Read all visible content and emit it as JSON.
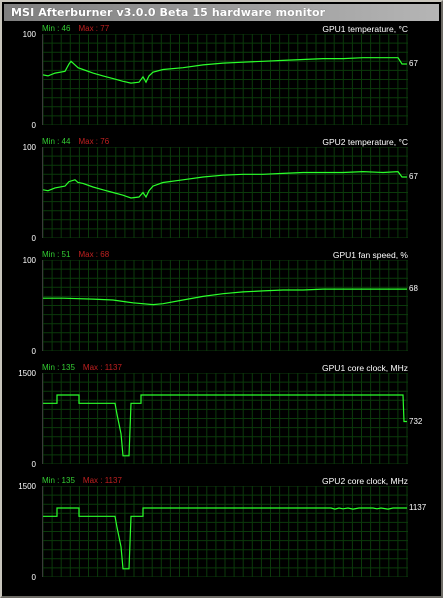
{
  "window": {
    "title": "MSI Afterburner v3.0.0 Beta 15 hardware monitor"
  },
  "colors": {
    "grid": "#0b3a0b",
    "line": "#2bff2b",
    "min": "#33cc33",
    "max": "#c02020"
  },
  "graphs": [
    {
      "title": "GPU1 temperature, °C",
      "min_label": "Min : 46",
      "max_label": "Max : 77",
      "y_top": "100",
      "y_bottom": "0",
      "current": "67",
      "range": [
        0,
        100
      ],
      "series": [
        [
          0,
          55
        ],
        [
          5,
          54
        ],
        [
          12,
          57
        ],
        [
          22,
          59
        ],
        [
          26,
          67
        ],
        [
          28,
          70
        ],
        [
          32,
          66
        ],
        [
          35,
          63
        ],
        [
          40,
          61
        ],
        [
          50,
          57
        ],
        [
          60,
          54
        ],
        [
          70,
          51
        ],
        [
          80,
          48
        ],
        [
          88,
          46
        ],
        [
          96,
          47
        ],
        [
          100,
          53
        ],
        [
          103,
          47
        ],
        [
          106,
          54
        ],
        [
          110,
          58
        ],
        [
          120,
          61
        ],
        [
          140,
          63
        ],
        [
          160,
          66
        ],
        [
          180,
          68
        ],
        [
          200,
          69
        ],
        [
          220,
          70
        ],
        [
          240,
          71
        ],
        [
          260,
          72
        ],
        [
          280,
          73
        ],
        [
          300,
          73
        ],
        [
          320,
          74
        ],
        [
          340,
          74
        ],
        [
          355,
          74
        ],
        [
          359,
          67
        ],
        [
          364,
          67
        ]
      ]
    },
    {
      "title": "GPU2 temperature, °C",
      "min_label": "Min : 44",
      "max_label": "Max : 76",
      "y_top": "100",
      "y_bottom": "0",
      "current": "67",
      "range": [
        0,
        100
      ],
      "series": [
        [
          0,
          53
        ],
        [
          5,
          52
        ],
        [
          12,
          55
        ],
        [
          22,
          57
        ],
        [
          26,
          62
        ],
        [
          32,
          64
        ],
        [
          35,
          61
        ],
        [
          40,
          60
        ],
        [
          50,
          56
        ],
        [
          60,
          53
        ],
        [
          70,
          50
        ],
        [
          80,
          47
        ],
        [
          88,
          44
        ],
        [
          96,
          45
        ],
        [
          100,
          50
        ],
        [
          103,
          45
        ],
        [
          106,
          52
        ],
        [
          110,
          57
        ],
        [
          120,
          61
        ],
        [
          140,
          64
        ],
        [
          160,
          67
        ],
        [
          180,
          69
        ],
        [
          200,
          70
        ],
        [
          220,
          70
        ],
        [
          240,
          71
        ],
        [
          260,
          72
        ],
        [
          280,
          72
        ],
        [
          300,
          72
        ],
        [
          320,
          73
        ],
        [
          340,
          72
        ],
        [
          355,
          73
        ],
        [
          359,
          67
        ],
        [
          364,
          67
        ]
      ]
    },
    {
      "title": "GPU1 fan speed, %",
      "min_label": "Min : 51",
      "max_label": "Max : 68",
      "y_top": "100",
      "y_bottom": "0",
      "current": "68",
      "range": [
        0,
        100
      ],
      "series": [
        [
          0,
          58
        ],
        [
          20,
          58
        ],
        [
          50,
          57
        ],
        [
          70,
          56
        ],
        [
          90,
          53
        ],
        [
          110,
          51
        ],
        [
          120,
          52
        ],
        [
          140,
          56
        ],
        [
          160,
          60
        ],
        [
          180,
          63
        ],
        [
          200,
          65
        ],
        [
          220,
          66
        ],
        [
          240,
          67
        ],
        [
          260,
          67
        ],
        [
          280,
          68
        ],
        [
          300,
          68
        ],
        [
          320,
          68
        ],
        [
          340,
          68
        ],
        [
          364,
          68
        ]
      ]
    },
    {
      "title": "GPU1 core clock, MHz",
      "min_label": "Min : 135",
      "max_label": "Max : 1137",
      "y_top": "1500",
      "y_bottom": "0",
      "current": "732",
      "range": [
        0,
        1500
      ],
      "series": [
        [
          0,
          1000
        ],
        [
          14,
          1000
        ],
        [
          14,
          1137
        ],
        [
          36,
          1137
        ],
        [
          36,
          1000
        ],
        [
          72,
          1000
        ],
        [
          74,
          820
        ],
        [
          78,
          500
        ],
        [
          80,
          135
        ],
        [
          84,
          135
        ],
        [
          86,
          135
        ],
        [
          88,
          1000
        ],
        [
          98,
          1000
        ],
        [
          98,
          1137
        ],
        [
          360,
          1137
        ],
        [
          361,
          700
        ],
        [
          364,
          700
        ]
      ]
    },
    {
      "title": "GPU2 core clock, MHz",
      "min_label": "Min : 135",
      "max_label": "Max : 1137",
      "y_top": "1500",
      "y_bottom": "0",
      "current": "1137",
      "range": [
        0,
        1500
      ],
      "series": [
        [
          0,
          1000
        ],
        [
          14,
          1000
        ],
        [
          14,
          1137
        ],
        [
          36,
          1137
        ],
        [
          36,
          1000
        ],
        [
          72,
          1000
        ],
        [
          74,
          820
        ],
        [
          78,
          500
        ],
        [
          80,
          135
        ],
        [
          84,
          135
        ],
        [
          86,
          135
        ],
        [
          88,
          1000
        ],
        [
          100,
          1000
        ],
        [
          100,
          1137
        ],
        [
          288,
          1137
        ],
        [
          292,
          1120
        ],
        [
          296,
          1137
        ],
        [
          300,
          1125
        ],
        [
          305,
          1137
        ],
        [
          310,
          1120
        ],
        [
          316,
          1137
        ],
        [
          330,
          1137
        ],
        [
          334,
          1125
        ],
        [
          338,
          1137
        ],
        [
          345,
          1120
        ],
        [
          350,
          1137
        ],
        [
          364,
          1137
        ]
      ]
    }
  ]
}
